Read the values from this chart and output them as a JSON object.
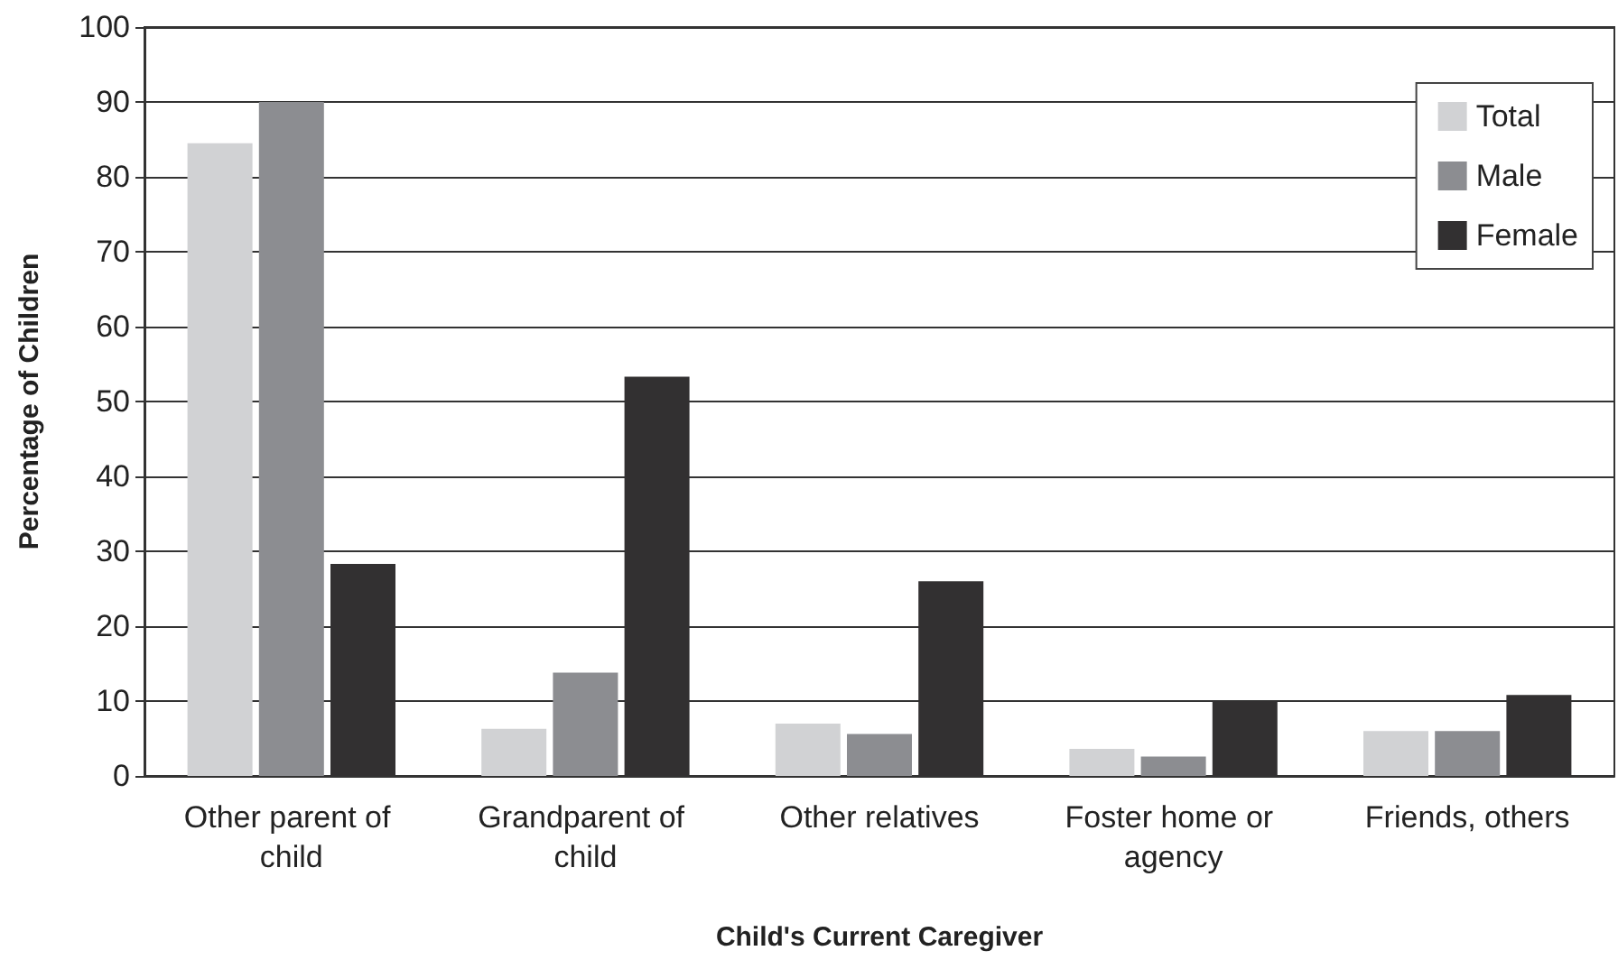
{
  "chart_data": {
    "type": "bar",
    "xlabel": "Child's Current Caregiver",
    "ylabel": "Percentage of Children",
    "categories": [
      "Other parent of child",
      "Grandparent of child",
      "Other relatives",
      "Foster home or agency",
      "Friends, others"
    ],
    "series": [
      {
        "name": "Total",
        "color": "#d1d2d4",
        "values": [
          84.5,
          6.3,
          7.0,
          3.6,
          6.0
        ]
      },
      {
        "name": "Male",
        "color": "#8c8d91",
        "values": [
          90,
          13.8,
          5.6,
          2.6,
          6.0
        ]
      },
      {
        "name": "Female",
        "color": "#323031",
        "values": [
          28.3,
          53.3,
          26,
          10,
          10.8
        ]
      }
    ],
    "ylim": [
      0,
      100
    ],
    "yticks": [
      0,
      10,
      20,
      30,
      40,
      50,
      60,
      70,
      80,
      90,
      100
    ],
    "grid": "y",
    "legend": "top right"
  }
}
